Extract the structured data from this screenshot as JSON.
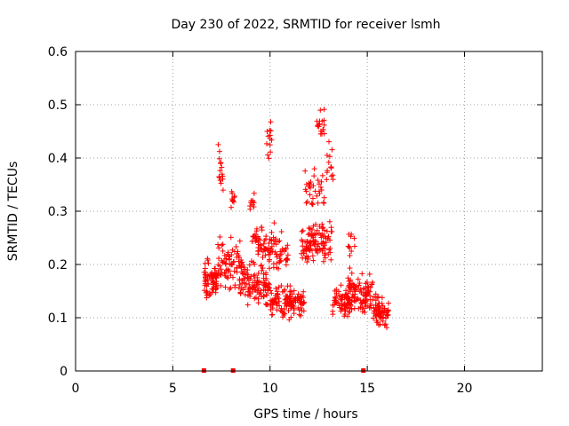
{
  "chart_data": {
    "type": "scatter",
    "title": "Day 230 of 2022, SRMTID for receiver lsmh",
    "xlabel": "GPS time / hours",
    "ylabel": "SRMTID / TECUs",
    "xlim": [
      0,
      24
    ],
    "ylim": [
      0,
      0.6
    ],
    "xticks": [
      0,
      5,
      10,
      15,
      20
    ],
    "xtick_labels": [
      "0",
      "5",
      "10",
      "15",
      "20"
    ],
    "yticks": [
      0,
      0.1,
      0.2,
      0.3,
      0.4,
      0.5,
      0.6
    ],
    "ytick_labels": [
      "0",
      "0.1",
      "0.2",
      "0.3",
      "0.4",
      "0.5",
      "0.6"
    ],
    "grid": true,
    "series_color": "#ff0000",
    "marker": "plus",
    "zero_values_x": [
      6.6,
      8.1,
      14.8
    ],
    "clusters": [
      {
        "x_range": [
          6.6,
          7.3
        ],
        "y_center": 0.17,
        "y_spread": 0.05,
        "count": 70
      },
      {
        "x_range": [
          7.3,
          7.6
        ],
        "y_center": 0.38,
        "y_spread": 0.08,
        "count": 15
      },
      {
        "x_range": [
          7.3,
          8.6
        ],
        "y_center": 0.2,
        "y_spread": 0.07,
        "count": 80
      },
      {
        "x_range": [
          8.0,
          8.2
        ],
        "y_center": 0.32,
        "y_spread": 0.04,
        "count": 10
      },
      {
        "x_range": [
          8.4,
          10.0
        ],
        "y_center": 0.16,
        "y_spread": 0.05,
        "count": 110
      },
      {
        "x_range": [
          8.9,
          9.2
        ],
        "y_center": 0.32,
        "y_spread": 0.03,
        "count": 10
      },
      {
        "x_range": [
          9.0,
          10.3
        ],
        "y_center": 0.24,
        "y_spread": 0.06,
        "count": 70
      },
      {
        "x_range": [
          9.8,
          10.1
        ],
        "y_center": 0.44,
        "y_spread": 0.05,
        "count": 14
      },
      {
        "x_range": [
          10.0,
          11.8
        ],
        "y_center": 0.13,
        "y_spread": 0.04,
        "count": 130
      },
      {
        "x_range": [
          10.3,
          11.0
        ],
        "y_center": 0.22,
        "y_spread": 0.05,
        "count": 30
      },
      {
        "x_range": [
          11.6,
          13.2
        ],
        "y_center": 0.24,
        "y_spread": 0.05,
        "count": 110
      },
      {
        "x_range": [
          11.8,
          12.8
        ],
        "y_center": 0.34,
        "y_spread": 0.05,
        "count": 35
      },
      {
        "x_range": [
          12.4,
          12.8
        ],
        "y_center": 0.46,
        "y_spread": 0.05,
        "count": 18
      },
      {
        "x_range": [
          12.9,
          13.3
        ],
        "y_center": 0.38,
        "y_spread": 0.06,
        "count": 14
      },
      {
        "x_range": [
          13.2,
          14.2
        ],
        "y_center": 0.13,
        "y_spread": 0.04,
        "count": 70
      },
      {
        "x_range": [
          14.0,
          15.0
        ],
        "y_center": 0.15,
        "y_spread": 0.05,
        "count": 70
      },
      {
        "x_range": [
          14.0,
          14.4
        ],
        "y_center": 0.24,
        "y_spread": 0.04,
        "count": 10
      },
      {
        "x_range": [
          14.8,
          15.3
        ],
        "y_center": 0.14,
        "y_spread": 0.05,
        "count": 30
      },
      {
        "x_range": [
          15.3,
          16.1
        ],
        "y_center": 0.11,
        "y_spread": 0.04,
        "count": 70
      }
    ]
  }
}
